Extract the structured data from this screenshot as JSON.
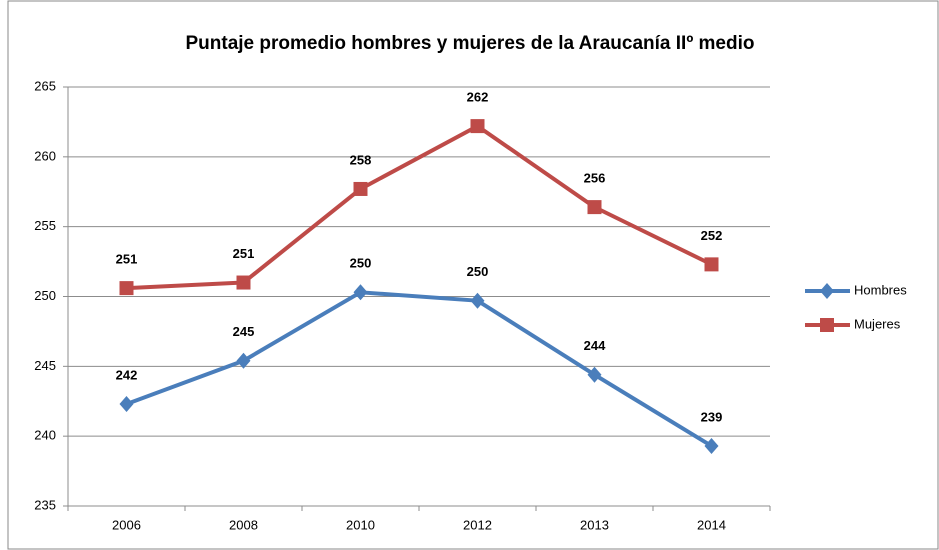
{
  "chart_data": {
    "type": "line",
    "title": "Puntaje promedio hombres y mujeres de la Araucanía IIº medio",
    "categories": [
      "2006",
      "2008",
      "2010",
      "2012",
      "2013",
      "2014"
    ],
    "series": [
      {
        "name": "Hombres",
        "color": "#4a7ebb",
        "marker": "diamond",
        "values": [
          242.3,
          245.4,
          250.3,
          249.7,
          244.4,
          239.3
        ],
        "value_labels": [
          "242",
          "245",
          "250",
          "250",
          "244",
          "239"
        ]
      },
      {
        "name": "Mujeres",
        "color": "#be4b48",
        "marker": "square",
        "values": [
          250.6,
          251.0,
          257.7,
          262.2,
          256.4,
          252.3
        ],
        "value_labels": [
          "251",
          "251",
          "258",
          "262",
          "256",
          "252"
        ]
      }
    ],
    "ylim": [
      235,
      265
    ],
    "yticks": [
      235,
      240,
      245,
      250,
      255,
      260,
      265
    ],
    "grid": true,
    "legend": "right"
  }
}
